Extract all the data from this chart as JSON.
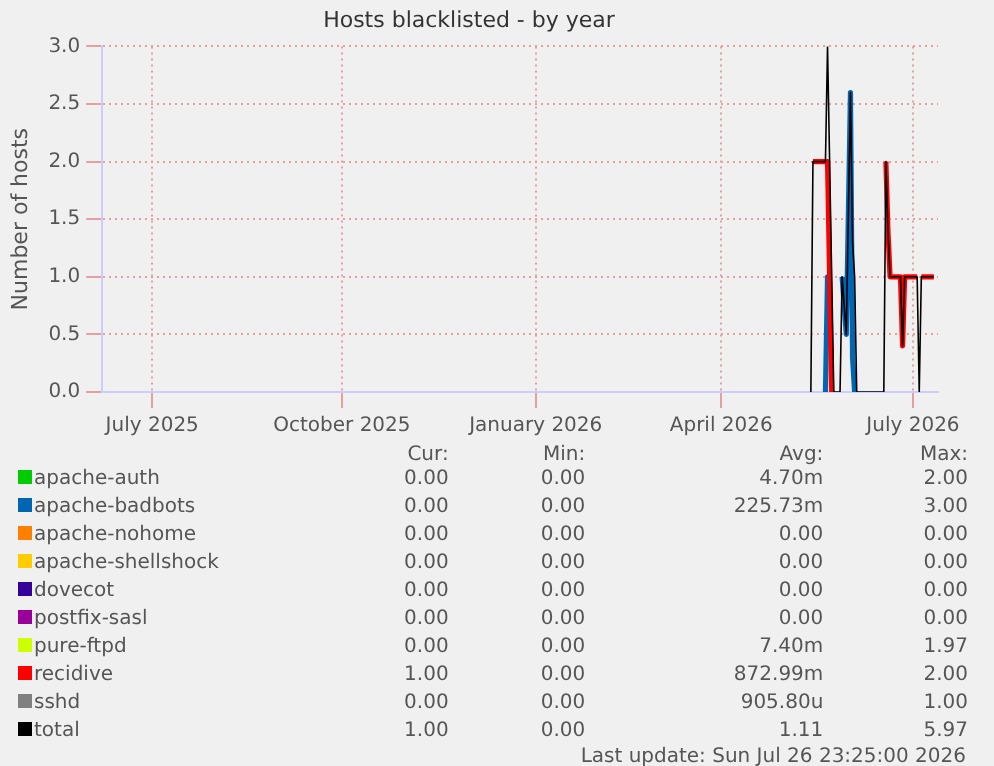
{
  "chart_data": {
    "type": "line",
    "title": "Hosts blacklisted - by year",
    "ylabel": "Number of hosts",
    "x": [
      "2026-05-28",
      "2026-05-29",
      "2026-06-04",
      "2026-06-05",
      "2026-06-07",
      "2026-06-08",
      "2026-06-11",
      "2026-06-12",
      "2026-06-14",
      "2026-06-16",
      "2026-06-17",
      "2026-06-18",
      "2026-06-19",
      "2026-07-02",
      "2026-07-03",
      "2026-07-04",
      "2026-07-05",
      "2026-07-10",
      "2026-07-11",
      "2026-07-12",
      "2026-07-18",
      "2026-07-19",
      "2026-07-20",
      "2026-07-26"
    ],
    "series": [
      {
        "name": "apache-auth",
        "color": "#00cc00",
        "values": [
          null,
          null,
          null,
          null,
          null,
          null,
          null,
          null,
          null,
          null,
          null,
          null,
          null,
          null,
          null,
          null,
          null,
          null,
          null,
          null,
          null,
          null,
          null,
          null
        ]
      },
      {
        "name": "apache-badbots",
        "color": "#0066b3",
        "values": [
          null,
          null,
          0,
          1.0,
          1.0,
          null,
          null,
          1.0,
          0.5,
          2.6,
          0.3,
          0,
          null,
          null,
          null,
          null,
          null,
          null,
          null,
          null,
          null,
          null,
          null,
          null
        ]
      },
      {
        "name": "apache-nohome",
        "color": "#ff8000",
        "values": [
          null,
          null,
          null,
          null,
          null,
          null,
          null,
          null,
          null,
          null,
          null,
          null,
          null,
          null,
          null,
          null,
          null,
          null,
          null,
          null,
          null,
          null,
          null,
          null
        ]
      },
      {
        "name": "apache-shellshock",
        "color": "#ffcc00",
        "values": [
          null,
          null,
          null,
          null,
          null,
          null,
          null,
          null,
          null,
          null,
          null,
          null,
          null,
          null,
          null,
          null,
          null,
          null,
          null,
          null,
          null,
          null,
          null,
          null
        ]
      },
      {
        "name": "dovecot",
        "color": "#330099",
        "values": [
          null,
          null,
          null,
          null,
          null,
          null,
          null,
          null,
          null,
          null,
          null,
          null,
          null,
          null,
          null,
          null,
          null,
          null,
          null,
          null,
          null,
          null,
          null,
          null
        ]
      },
      {
        "name": "postfix-sasl",
        "color": "#990099",
        "values": [
          null,
          null,
          null,
          null,
          null,
          null,
          null,
          null,
          null,
          null,
          null,
          null,
          null,
          null,
          null,
          null,
          null,
          null,
          null,
          null,
          null,
          null,
          null,
          null
        ]
      },
      {
        "name": "pure-ftpd",
        "color": "#ccff00",
        "values": [
          null,
          null,
          null,
          null,
          null,
          null,
          null,
          null,
          null,
          null,
          null,
          null,
          null,
          null,
          null,
          null,
          null,
          null,
          null,
          null,
          null,
          null,
          null,
          null
        ]
      },
      {
        "name": "recidive",
        "color": "#ff0000",
        "values": [
          null,
          2.0,
          2.0,
          2.0,
          0,
          null,
          null,
          null,
          null,
          null,
          null,
          null,
          null,
          null,
          2.0,
          1.4,
          1.0,
          1.0,
          0.4,
          1.0,
          1.0,
          null,
          1.0,
          1.0
        ]
      },
      {
        "name": "sshd",
        "color": "#808080",
        "values": [
          null,
          null,
          null,
          null,
          null,
          null,
          null,
          null,
          null,
          null,
          null,
          null,
          null,
          null,
          null,
          null,
          null,
          null,
          null,
          null,
          null,
          null,
          null,
          null
        ]
      },
      {
        "name": "total",
        "color": "#000000",
        "values": [
          0,
          2.0,
          2.0,
          3.0,
          1.0,
          0,
          0,
          1.0,
          0.5,
          2.6,
          1.3,
          1.0,
          0,
          0,
          2.0,
          1.4,
          1.0,
          1.0,
          0.4,
          1.0,
          1.0,
          0,
          1.0,
          1.0
        ]
      }
    ],
    "xlim": [
      "2025-06-22",
      "2026-07-28"
    ],
    "xticks": [
      {
        "value": "2025-07-16",
        "label": "July 2025"
      },
      {
        "value": "2025-10-15",
        "label": "October 2025"
      },
      {
        "value": "2026-01-16",
        "label": "January 2026"
      },
      {
        "value": "2026-04-15",
        "label": "April 2026"
      },
      {
        "value": "2026-07-16",
        "label": "July 2026"
      }
    ],
    "ylim": [
      0,
      3.0
    ],
    "yticks": [
      {
        "value": 0,
        "label": "0.0"
      },
      {
        "value": 0.5,
        "label": "0.5"
      },
      {
        "value": 1.0,
        "label": "1.0"
      },
      {
        "value": 1.5,
        "label": "1.5"
      },
      {
        "value": 2.0,
        "label": "2.0"
      },
      {
        "value": 2.5,
        "label": "2.5"
      },
      {
        "value": 3.0,
        "label": "3.0"
      }
    ],
    "grid": true,
    "legend": "bottom",
    "marker": "none",
    "line_style": "solid",
    "annotations": [
      "Cur:",
      "Min:",
      "Avg:",
      "Max:",
      "0.00",
      "0.00",
      "4.70m",
      "2.00",
      "0.00",
      "0.00",
      "225.73m",
      "3.00",
      "0.00",
      "0.00",
      "0.00",
      "0.00",
      "0.00",
      "0.00",
      "0.00",
      "0.00",
      "0.00",
      "0.00",
      "0.00",
      "0.00",
      "0.00",
      "0.00",
      "0.00",
      "0.00",
      "0.00",
      "0.00",
      "7.40m",
      "1.97",
      "1.00",
      "0.00",
      "872.99m",
      "2.00",
      "0.00",
      "0.00",
      "905.80u",
      "1.00",
      "1.00",
      "0.00",
      "1.11",
      "5.97",
      "Last update: Sun Jul 26 23:25:00 2026"
    ]
  }
}
